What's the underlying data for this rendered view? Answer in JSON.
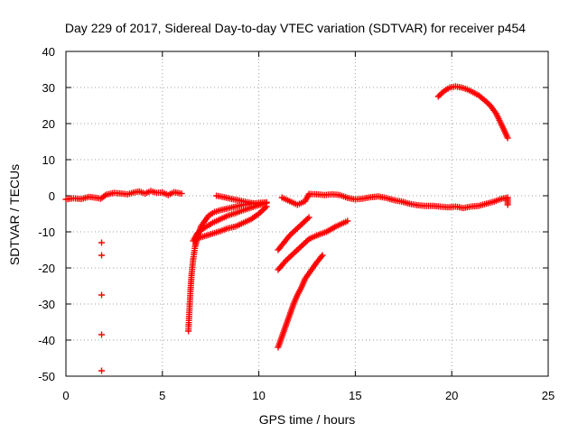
{
  "chart_data": {
    "type": "scatter",
    "title": "Day 229 of 2017, Sidereal Day-to-day VTEC variation (SDTVAR) for receiver p454",
    "xlabel": "GPS time / hours",
    "ylabel": "SDTVAR / TECUs",
    "xlim": [
      0,
      25
    ],
    "ylim": [
      -50,
      40
    ],
    "xticks": [
      0,
      5,
      10,
      15,
      20,
      25
    ],
    "yticks": [
      -50,
      -40,
      -30,
      -20,
      -10,
      0,
      10,
      20,
      30,
      40
    ],
    "grid": true,
    "marker": "plus",
    "color": "#ff0000",
    "series": [
      {
        "name": "near-zero baseline",
        "points": [
          [
            0.0,
            -1.0
          ],
          [
            0.4,
            -0.7
          ],
          [
            0.8,
            -0.9
          ],
          [
            1.2,
            -0.3
          ],
          [
            1.6,
            -0.6
          ],
          [
            1.8,
            -0.8
          ],
          [
            2.1,
            0.3
          ],
          [
            2.5,
            0.8
          ],
          [
            2.9,
            0.6
          ],
          [
            3.2,
            0.4
          ],
          [
            3.5,
            0.9
          ],
          [
            3.8,
            1.2
          ],
          [
            4.1,
            0.6
          ],
          [
            4.4,
            1.3
          ],
          [
            4.7,
            0.8
          ],
          [
            5.0,
            0.9
          ],
          [
            5.3,
            0.2
          ],
          [
            5.6,
            1.0
          ],
          [
            6.0,
            0.6
          ]
        ]
      },
      {
        "name": "outliers near 1.8 h",
        "points": [
          [
            1.85,
            -13.0
          ],
          [
            1.85,
            -16.5
          ],
          [
            1.85,
            -27.5
          ],
          [
            1.85,
            -38.5
          ],
          [
            1.85,
            -48.5
          ]
        ]
      },
      {
        "name": "steep recovery 6.3-10.4 h",
        "points": [
          [
            6.35,
            -37.5
          ],
          [
            6.38,
            -34.0
          ],
          [
            6.42,
            -30.0
          ],
          [
            6.46,
            -26.0
          ],
          [
            6.52,
            -21.5
          ],
          [
            6.6,
            -17.5
          ],
          [
            6.7,
            -14.0
          ],
          [
            6.85,
            -11.0
          ],
          [
            7.0,
            -8.5
          ],
          [
            7.2,
            -7.0
          ],
          [
            7.4,
            -5.5
          ],
          [
            7.7,
            -4.5
          ],
          [
            8.0,
            -4.0
          ],
          [
            8.4,
            -3.5
          ],
          [
            8.8,
            -3.0
          ],
          [
            9.2,
            -2.5
          ],
          [
            9.6,
            -2.2
          ],
          [
            10.0,
            -2.0
          ],
          [
            10.4,
            -1.8
          ]
        ]
      },
      {
        "name": "second recovery branch",
        "points": [
          [
            6.6,
            -12.5
          ],
          [
            6.8,
            -10.5
          ],
          [
            7.0,
            -9.5
          ],
          [
            7.3,
            -8.5
          ],
          [
            7.6,
            -7.5
          ],
          [
            8.0,
            -6.5
          ],
          [
            8.4,
            -5.5
          ],
          [
            8.8,
            -4.8
          ],
          [
            9.2,
            -4.0
          ],
          [
            9.6,
            -3.3
          ],
          [
            10.0,
            -2.6
          ],
          [
            10.4,
            -2.0
          ]
        ]
      },
      {
        "name": "third recovery branch",
        "points": [
          [
            6.7,
            -12.0
          ],
          [
            7.0,
            -11.5
          ],
          [
            7.3,
            -11.0
          ],
          [
            7.6,
            -10.5
          ],
          [
            8.0,
            -9.8
          ],
          [
            8.4,
            -9.0
          ],
          [
            8.8,
            -8.5
          ],
          [
            9.2,
            -7.5
          ],
          [
            9.6,
            -6.5
          ],
          [
            10.0,
            -5.0
          ],
          [
            10.4,
            -3.0
          ]
        ]
      },
      {
        "name": "arc 7.8-10.0 h",
        "points": [
          [
            7.8,
            0.0
          ],
          [
            8.2,
            -0.4
          ],
          [
            8.6,
            -0.9
          ],
          [
            9.0,
            -1.3
          ],
          [
            9.4,
            -1.8
          ],
          [
            9.8,
            -2.2
          ],
          [
            10.0,
            -2.4
          ]
        ]
      },
      {
        "name": "baseline 11.2-23.0 h",
        "points": [
          [
            11.2,
            -0.5
          ],
          [
            11.6,
            -1.5
          ],
          [
            12.0,
            -2.5
          ],
          [
            12.4,
            -1.5
          ],
          [
            12.6,
            0.5
          ],
          [
            13.0,
            0.4
          ],
          [
            13.4,
            0.2
          ],
          [
            13.8,
            0.4
          ],
          [
            14.2,
            0.2
          ],
          [
            14.6,
            -0.6
          ],
          [
            15.0,
            -1.0
          ],
          [
            15.4,
            -0.8
          ],
          [
            15.8,
            -0.4
          ],
          [
            16.2,
            -0.2
          ],
          [
            16.6,
            -0.6
          ],
          [
            17.0,
            -1.2
          ],
          [
            17.4,
            -1.6
          ],
          [
            17.8,
            -2.2
          ],
          [
            18.2,
            -2.6
          ],
          [
            18.6,
            -2.8
          ],
          [
            19.0,
            -2.8
          ],
          [
            19.4,
            -3.0
          ],
          [
            19.8,
            -3.2
          ],
          [
            20.2,
            -3.0
          ],
          [
            20.6,
            -3.4
          ],
          [
            21.0,
            -3.0
          ],
          [
            21.4,
            -2.8
          ],
          [
            21.8,
            -2.2
          ],
          [
            22.2,
            -1.6
          ],
          [
            22.6,
            -0.8
          ],
          [
            22.9,
            -0.5
          ],
          [
            22.9,
            -2.5
          ]
        ]
      },
      {
        "name": "track 11.0-14.5 h",
        "points": [
          [
            11.0,
            -15.0
          ],
          [
            11.3,
            -13.0
          ],
          [
            11.6,
            -11.0
          ],
          [
            12.0,
            -9.0
          ],
          [
            12.3,
            -7.5
          ],
          [
            12.6,
            -6.0
          ]
        ]
      },
      {
        "name": "track 11.0-14.6 h lower",
        "points": [
          [
            11.0,
            -20.5
          ],
          [
            11.4,
            -18.0
          ],
          [
            11.8,
            -16.0
          ],
          [
            12.2,
            -14.0
          ],
          [
            12.6,
            -12.0
          ],
          [
            13.0,
            -11.0
          ],
          [
            13.5,
            -10.0
          ],
          [
            14.0,
            -8.5
          ],
          [
            14.6,
            -7.0
          ]
        ]
      },
      {
        "name": "steep track 11.0-13.3 h",
        "points": [
          [
            11.0,
            -42.0
          ],
          [
            11.2,
            -39.0
          ],
          [
            11.4,
            -36.0
          ],
          [
            11.6,
            -33.0
          ],
          [
            11.8,
            -30.0
          ],
          [
            12.0,
            -27.5
          ],
          [
            12.2,
            -25.5
          ],
          [
            12.4,
            -23.0
          ],
          [
            12.6,
            -21.5
          ],
          [
            12.8,
            -20.0
          ],
          [
            13.0,
            -18.5
          ],
          [
            13.3,
            -16.5
          ]
        ]
      },
      {
        "name": "upper arc 19.3-22.9 h",
        "points": [
          [
            19.3,
            27.5
          ],
          [
            19.6,
            29.0
          ],
          [
            19.9,
            30.0
          ],
          [
            20.2,
            30.3
          ],
          [
            20.5,
            30.0
          ],
          [
            20.8,
            29.5
          ],
          [
            21.1,
            28.7
          ],
          [
            21.4,
            27.8
          ],
          [
            21.7,
            26.5
          ],
          [
            22.0,
            25.0
          ],
          [
            22.3,
            22.8
          ],
          [
            22.6,
            19.5
          ],
          [
            22.9,
            16.0
          ]
        ]
      }
    ]
  }
}
